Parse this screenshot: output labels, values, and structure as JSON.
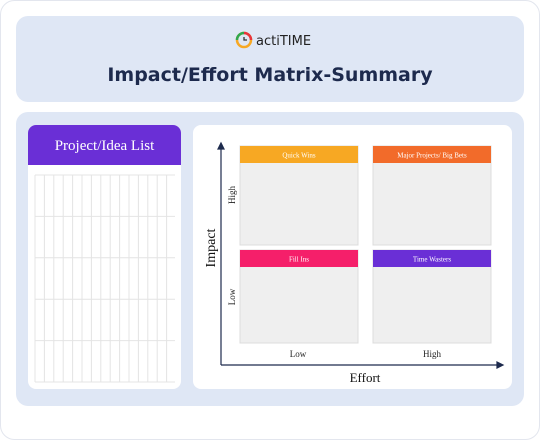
{
  "header": {
    "brand": "actiTIME",
    "title": "Impact/Effort Matrix-Summary"
  },
  "list": {
    "title": "Project/Idea List"
  },
  "matrix": {
    "y_axis": {
      "label": "Impact",
      "high": "High",
      "low": "Low"
    },
    "x_axis": {
      "label": "Effort",
      "low": "Low",
      "high": "High"
    },
    "quadrants": [
      "Quick Wins",
      "Major Projects/ Big Bets",
      "Fill Ins",
      "Time Wasters"
    ]
  }
}
